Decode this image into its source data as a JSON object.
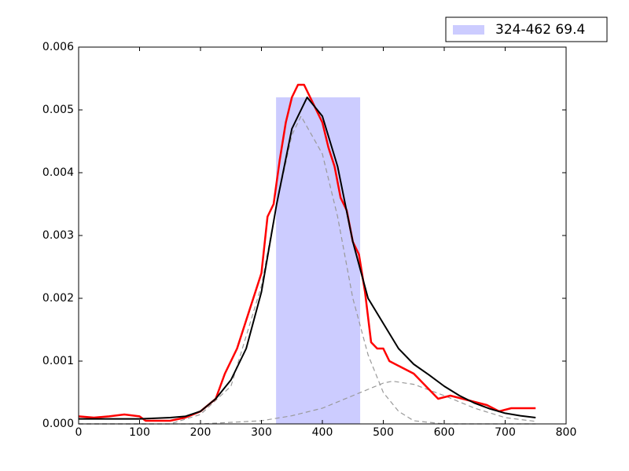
{
  "chart_data": {
    "type": "line",
    "xlim": [
      0,
      800
    ],
    "ylim": [
      0,
      0.006
    ],
    "xticks": [
      0,
      100,
      200,
      300,
      400,
      500,
      600,
      700,
      800
    ],
    "yticks": [
      {
        "value": 0,
        "label": "0.000"
      },
      0.001,
      0.002,
      0.003,
      0.004,
      0.005,
      0.006
    ],
    "span": {
      "x0": 324,
      "x1": 462,
      "top": 0.0052,
      "label": "324-462 69.4",
      "color": "#ccccff"
    },
    "legend": "upper right",
    "series": [
      {
        "color": "#ff0000",
        "dash": false,
        "width": 2.5,
        "x": [
          0,
          25,
          50,
          75,
          100,
          110,
          150,
          175,
          200,
          225,
          240,
          260,
          280,
          300,
          310,
          320,
          330,
          340,
          350,
          360,
          370,
          380,
          390,
          400,
          410,
          420,
          430,
          440,
          450,
          460,
          470,
          480,
          490,
          500,
          510,
          530,
          550,
          570,
          590,
          610,
          630,
          650,
          670,
          690,
          710,
          750
        ],
        "values": [
          0.00012,
          0.0001,
          0.00012,
          0.00015,
          0.00012,
          5e-05,
          5e-05,
          0.0001,
          0.0002,
          0.0004,
          0.0008,
          0.0012,
          0.0018,
          0.0024,
          0.0033,
          0.0035,
          0.0042,
          0.0048,
          0.0052,
          0.0054,
          0.0054,
          0.0052,
          0.005,
          0.0048,
          0.0044,
          0.0041,
          0.0036,
          0.0034,
          0.0029,
          0.0027,
          0.0021,
          0.0013,
          0.0012,
          0.0012,
          0.001,
          0.0009,
          0.0008,
          0.0006,
          0.0004,
          0.00045,
          0.0004,
          0.00035,
          0.0003,
          0.0002,
          0.00025,
          0.00025
        ]
      },
      {
        "color": "#000000",
        "dash": false,
        "width": 2,
        "x": [
          0,
          50,
          100,
          150,
          175,
          200,
          225,
          250,
          275,
          300,
          325,
          350,
          375,
          400,
          425,
          450,
          475,
          500,
          525,
          550,
          575,
          600,
          625,
          650,
          675,
          700,
          725,
          750
        ],
        "values": [
          8e-05,
          8e-05,
          8e-05,
          0.0001,
          0.00012,
          0.0002,
          0.0004,
          0.0007,
          0.0012,
          0.0021,
          0.0035,
          0.0047,
          0.0052,
          0.0049,
          0.0041,
          0.0029,
          0.002,
          0.0016,
          0.0012,
          0.00095,
          0.00078,
          0.0006,
          0.00045,
          0.00033,
          0.00024,
          0.00017,
          0.00013,
          0.0001
        ]
      },
      {
        "color": "#999999",
        "dash": true,
        "width": 1.2,
        "x": [
          0,
          150,
          200,
          250,
          300,
          325,
          350,
          365,
          400,
          425,
          450,
          475,
          500,
          525,
          550,
          600,
          700,
          750
        ],
        "values": [
          0,
          0,
          0.00015,
          0.0006,
          0.0022,
          0.0035,
          0.0046,
          0.0049,
          0.0043,
          0.0033,
          0.002,
          0.0011,
          0.0005,
          0.0002,
          5e-05,
          0,
          0,
          0
        ]
      },
      {
        "color": "#999999",
        "dash": true,
        "width": 1.2,
        "x": [
          0,
          200,
          300,
          350,
          400,
          450,
          500,
          515,
          550,
          600,
          650,
          700,
          750
        ],
        "values": [
          0,
          0,
          5e-05,
          0.00013,
          0.00025,
          0.00045,
          0.00065,
          0.00068,
          0.00063,
          0.00045,
          0.00025,
          0.0001,
          4e-05
        ]
      }
    ]
  }
}
